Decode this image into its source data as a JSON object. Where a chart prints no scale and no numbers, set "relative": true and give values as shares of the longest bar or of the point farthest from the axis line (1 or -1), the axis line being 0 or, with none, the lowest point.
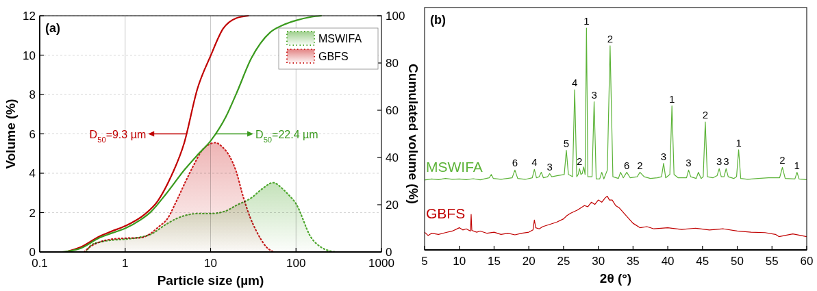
{
  "chart_data": [
    {
      "type": "area",
      "title": "(a)",
      "xlabel": "Particle size (µm)",
      "ylabel": "Volume (%)",
      "y2label": "Cumulated volume (%)",
      "log": "x",
      "grid": true,
      "legend": "top right",
      "xlim": [
        0.1,
        1000
      ],
      "xticks": [
        0.1,
        1,
        10,
        100,
        1000
      ],
      "ylim": [
        0,
        12
      ],
      "yticks": [
        0,
        2,
        4,
        6,
        8,
        10,
        12
      ],
      "y2lim": [
        0,
        100
      ],
      "y2ticks": [
        0,
        20,
        40,
        60,
        80,
        100
      ],
      "annotations": [
        "D$_{50}$=9.3 µm",
        "D$_{50}$=22.4 µm"
      ],
      "series": [
        {
          "name": "MSWIFA",
          "color": "#4ea72e",
          "line_style": "dotted",
          "x": [
            0.35,
            0.4,
            0.5,
            0.7,
            1,
            1.5,
            2,
            3,
            4,
            5,
            7,
            10,
            15,
            20,
            30,
            40,
            54,
            70,
            80,
            100,
            150,
            200,
            250,
            300
          ],
          "values": [
            0,
            0.35,
            0.5,
            0.6,
            0.65,
            0.75,
            0.9,
            1.4,
            1.7,
            1.85,
            1.95,
            1.95,
            2.08,
            2.37,
            2.75,
            3.2,
            3.52,
            3.2,
            2.95,
            2.45,
            0.74,
            0.22,
            0.05,
            0
          ]
        },
        {
          "name": "GBFS",
          "color": "#cc1f1f",
          "line_style": "dotted",
          "x": [
            0.33,
            0.4,
            0.5,
            0.7,
            1,
            1.5,
            2,
            2.5,
            3.1,
            4,
            5.1,
            6.5,
            7.9,
            9.5,
            11.3,
            14,
            17,
            19.9,
            24,
            28.9,
            34,
            39,
            45,
            52,
            55
          ],
          "values": [
            0,
            0.3,
            0.5,
            0.65,
            0.7,
            0.72,
            0.95,
            1.3,
            1.67,
            2.6,
            3.58,
            4.5,
            5.15,
            5.45,
            5.55,
            5.3,
            4.8,
            4.1,
            2.83,
            1.78,
            1.1,
            0.63,
            0.25,
            0.05,
            0
          ]
        },
        {
          "type": "line",
          "axis": "y2",
          "color": "#c00000",
          "x": [
            0.2,
            0.3,
            0.5,
            0.7,
            1,
            1.7,
            2.4,
            3.4,
            4.9,
            7,
            10,
            14,
            20,
            28
          ],
          "values": [
            0,
            2,
            6.6,
            8.8,
            11,
            16,
            21.5,
            31.5,
            46,
            69,
            83,
            94.5,
            99,
            100
          ]
        },
        {
          "type": "line",
          "axis": "y2",
          "color": "#3a9a1e",
          "x": [
            0.18,
            0.3,
            0.5,
            0.7,
            1,
            1.5,
            2,
            3,
            5,
            7,
            10,
            15,
            20,
            30,
            50,
            70,
            100,
            150,
            200
          ],
          "values": [
            0,
            1.5,
            6,
            8,
            10,
            13.5,
            17,
            24.5,
            35,
            41,
            47,
            57,
            67,
            82,
            93,
            96,
            98,
            99.5,
            100
          ]
        }
      ]
    },
    {
      "type": "line",
      "title": "(b)",
      "xlabel": "2θ (°)",
      "relative": true,
      "grid": false,
      "legend": false,
      "xlim": [
        5,
        60
      ],
      "xticks": [
        5,
        10,
        15,
        20,
        25,
        30,
        35,
        40,
        45,
        50,
        55,
        60
      ],
      "annotations": [
        {
          "text": "6",
          "x": 18.0,
          "y": 0.36
        },
        {
          "text": "4",
          "x": 20.8,
          "y": 0.363
        },
        {
          "text": "3",
          "x": 23.0,
          "y": 0.344
        },
        {
          "text": "5",
          "x": 25.4,
          "y": 0.449
        },
        {
          "text": "4",
          "x": 26.6,
          "y": 0.722
        },
        {
          "text": "2",
          "x": 27.3,
          "y": 0.366
        },
        {
          "text": "1",
          "x": 28.3,
          "y": 1.0
        },
        {
          "text": "3",
          "x": 29.4,
          "y": 0.668
        },
        {
          "text": "2",
          "x": 31.7,
          "y": 0.92
        },
        {
          "text": "6",
          "x": 34.1,
          "y": 0.35
        },
        {
          "text": "2",
          "x": 36.0,
          "y": 0.35
        },
        {
          "text": "3",
          "x": 39.4,
          "y": 0.39
        },
        {
          "text": "1",
          "x": 40.6,
          "y": 0.649
        },
        {
          "text": "3",
          "x": 43.0,
          "y": 0.36
        },
        {
          "text": "2",
          "x": 45.4,
          "y": 0.577
        },
        {
          "text": "3",
          "x": 47.4,
          "y": 0.366
        },
        {
          "text": "3",
          "x": 48.4,
          "y": 0.366
        },
        {
          "text": "1",
          "x": 50.2,
          "y": 0.451
        },
        {
          "text": "2",
          "x": 56.5,
          "y": 0.372
        },
        {
          "text": "1",
          "x": 58.6,
          "y": 0.35
        }
      ],
      "series": [
        {
          "name": "MSWIFA",
          "color": "#5cb338",
          "x": [
            5,
            6,
            7,
            8,
            9,
            10,
            11,
            12,
            13,
            14.3,
            14.6,
            14.9,
            16,
            17.6,
            18.0,
            18.4,
            19.5,
            20.5,
            20.8,
            21.1,
            21.5,
            21.8,
            22.1,
            22.7,
            23.0,
            23.3,
            24.2,
            25.1,
            25.4,
            25.7,
            26.3,
            26.6,
            26.9,
            27.1,
            27.3,
            27.5,
            27.7,
            27.9,
            28.1,
            28.3,
            28.5,
            29.1,
            29.4,
            29.7,
            30.2,
            30.5,
            30.8,
            31.3,
            31.7,
            32.1,
            32.9,
            33.2,
            33.6,
            34.1,
            34.6,
            35.6,
            36.0,
            36.6,
            37.5,
            38.5,
            39.1,
            39.4,
            39.7,
            40.3,
            40.6,
            40.9,
            41.5,
            42.7,
            43.0,
            43.3,
            44.1,
            44.4,
            44.8,
            45.1,
            45.4,
            45.7,
            46.5,
            47.1,
            47.4,
            47.7,
            48.1,
            48.4,
            48.7,
            49.5,
            49.9,
            50.2,
            50.5,
            51.5,
            53,
            54.5,
            56.1,
            56.5,
            56.9,
            58.3,
            58.6,
            58.9,
            60
          ],
          "values": [
            0.315,
            0.32,
            0.317,
            0.322,
            0.318,
            0.32,
            0.317,
            0.321,
            0.316,
            0.325,
            0.34,
            0.322,
            0.318,
            0.325,
            0.36,
            0.322,
            0.318,
            0.325,
            0.363,
            0.325,
            0.33,
            0.35,
            0.325,
            0.33,
            0.344,
            0.33,
            0.335,
            0.34,
            0.449,
            0.34,
            0.33,
            0.722,
            0.33,
            0.34,
            0.366,
            0.34,
            0.345,
            0.374,
            0.34,
            1.0,
            0.33,
            0.33,
            0.668,
            0.32,
            0.32,
            0.35,
            0.32,
            0.36,
            0.92,
            0.33,
            0.322,
            0.35,
            0.325,
            0.35,
            0.325,
            0.33,
            0.35,
            0.33,
            0.322,
            0.325,
            0.33,
            0.39,
            0.325,
            0.34,
            0.649,
            0.34,
            0.325,
            0.325,
            0.36,
            0.33,
            0.322,
            0.35,
            0.322,
            0.33,
            0.577,
            0.33,
            0.325,
            0.335,
            0.366,
            0.33,
            0.33,
            0.366,
            0.33,
            0.322,
            0.33,
            0.451,
            0.322,
            0.318,
            0.322,
            0.325,
            0.325,
            0.372,
            0.322,
            0.32,
            0.35,
            0.32,
            0.317
          ]
        },
        {
          "name": "GBFS",
          "color": "#c00000",
          "x": [
            5,
            5.5,
            6,
            7,
            8,
            9,
            10,
            10.5,
            11,
            11.6,
            11.7,
            11.8,
            12.5,
            13,
            14,
            15,
            16,
            17,
            18,
            19,
            20,
            20.6,
            20.8,
            21,
            21.5,
            22,
            23,
            24,
            25,
            25.5,
            26,
            27,
            28,
            28.5,
            29,
            29.5,
            30,
            30.5,
            31,
            31.3,
            31.6,
            32,
            32.5,
            33,
            34,
            35,
            36,
            37,
            38,
            40,
            42,
            44,
            46,
            48,
            50,
            52,
            54,
            55.5,
            56,
            58,
            60
          ],
          "values": [
            0.08,
            0.065,
            0.075,
            0.07,
            0.078,
            0.085,
            0.1,
            0.09,
            0.095,
            0.085,
            0.16,
            0.088,
            0.08,
            0.085,
            0.075,
            0.08,
            0.07,
            0.075,
            0.068,
            0.075,
            0.08,
            0.09,
            0.135,
            0.1,
            0.095,
            0.105,
            0.115,
            0.125,
            0.14,
            0.155,
            0.165,
            0.18,
            0.2,
            0.195,
            0.215,
            0.205,
            0.225,
            0.215,
            0.235,
            0.242,
            0.225,
            0.225,
            0.2,
            0.19,
            0.155,
            0.12,
            0.1,
            0.105,
            0.095,
            0.1,
            0.092,
            0.098,
            0.09,
            0.095,
            0.085,
            0.08,
            0.078,
            0.07,
            0.06,
            0.072,
            0.06
          ]
        }
      ]
    }
  ]
}
